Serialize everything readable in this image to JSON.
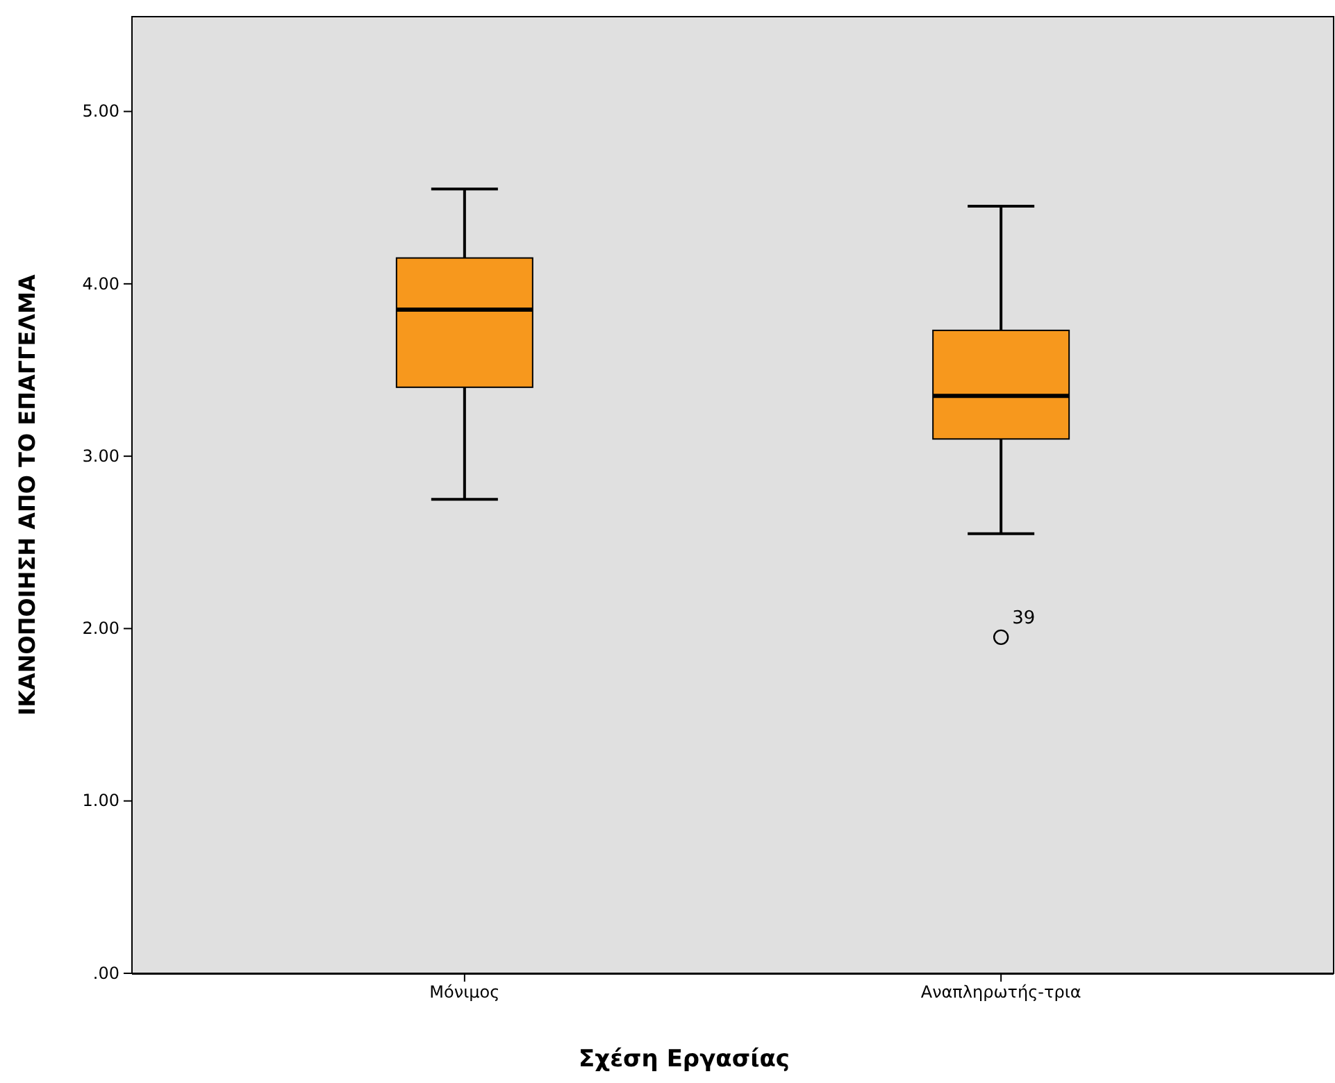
{
  "chart_data": {
    "type": "box",
    "xlabel": "Σχέση Εργασίας",
    "ylabel": "ΙΚΑΝΟΠΟΙΗΣΗ ΑΠΟ ΤΟ ΕΠΑΓΓΕΛΜΑ",
    "categories": [
      "Μόνιμος",
      "Αναπληρωτής-τρια"
    ],
    "boxes": [
      {
        "low": 2.75,
        "q1": 3.4,
        "median": 3.85,
        "q3": 4.15,
        "high": 4.55
      },
      {
        "low": 2.55,
        "q1": 3.1,
        "median": 3.35,
        "q3": 3.73,
        "high": 4.45,
        "outliers": [
          1.95
        ]
      }
    ],
    "color": "#f7981d",
    "ylim": [
      0,
      5.55
    ],
    "yticks": [
      {
        "value": 0,
        "label": ".00"
      },
      {
        "value": 1,
        "label": "1.00"
      },
      {
        "value": 2,
        "label": "2.00"
      },
      {
        "value": 3,
        "label": "3.00"
      },
      {
        "value": 4,
        "label": "4.00"
      },
      {
        "value": 5,
        "label": "5.00"
      }
    ],
    "annotations": [
      "39"
    ]
  }
}
